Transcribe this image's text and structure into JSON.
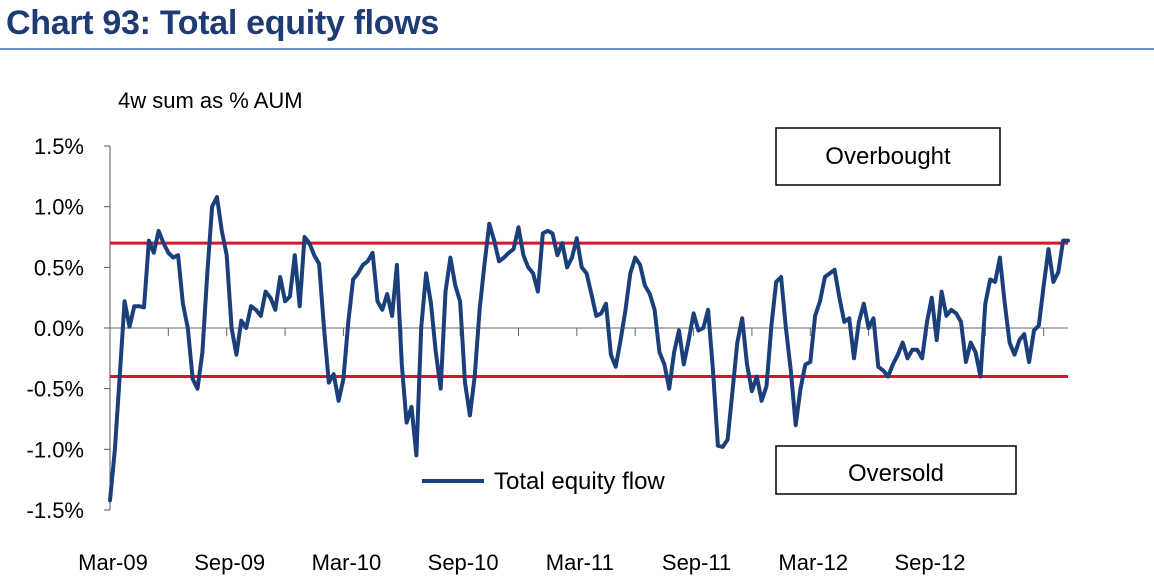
{
  "title": "Chart 93: Total equity flows",
  "chart_data": {
    "type": "line",
    "subtitle": "4w sum as % AUM",
    "ylim": [
      -1.5,
      1.5
    ],
    "yticks": [
      1.5,
      1.0,
      0.5,
      0.0,
      -0.5,
      -1.0,
      -1.5
    ],
    "ytick_labels": [
      "1.5%",
      "1.0%",
      "0.5%",
      "0.0%",
      "-0.5%",
      "-1.0%",
      "-1.5%"
    ],
    "x_tick_labels": [
      "Mar-09",
      "Sep-09",
      "Mar-10",
      "Sep-10",
      "Mar-11",
      "Sep-11",
      "Mar-12",
      "Sep-12"
    ],
    "x_tick_indices": [
      0,
      24,
      48,
      72,
      96,
      120,
      144,
      168
    ],
    "thresholds": {
      "overbought": 0.7,
      "oversold": -0.4,
      "color": "#d9142b"
    },
    "annotations": [
      "Overbought",
      "Oversold"
    ],
    "series": [
      {
        "name": "Total equity flow",
        "color": "#1a3f7a",
        "values": [
          -1.42,
          -1.0,
          -0.4,
          0.22,
          0.01,
          0.18,
          0.18,
          0.17,
          0.72,
          0.62,
          0.8,
          0.7,
          0.62,
          0.58,
          0.6,
          0.2,
          0.0,
          -0.42,
          -0.5,
          -0.2,
          0.45,
          1.0,
          1.08,
          0.8,
          0.6,
          0.0,
          -0.22,
          0.06,
          0.0,
          0.18,
          0.15,
          0.1,
          0.3,
          0.25,
          0.15,
          0.42,
          0.22,
          0.26,
          0.6,
          0.18,
          0.75,
          0.7,
          0.6,
          0.53,
          0.0,
          -0.45,
          -0.38,
          -0.6,
          -0.42,
          0.05,
          0.4,
          0.45,
          0.52,
          0.55,
          0.62,
          0.22,
          0.15,
          0.28,
          0.1,
          0.52,
          -0.3,
          -0.78,
          -0.65,
          -1.05,
          0.0,
          0.45,
          0.2,
          -0.2,
          -0.5,
          0.3,
          0.58,
          0.35,
          0.22,
          -0.45,
          -0.72,
          -0.4,
          0.15,
          0.52,
          0.86,
          0.72,
          0.55,
          0.58,
          0.62,
          0.65,
          0.83,
          0.6,
          0.5,
          0.45,
          0.3,
          0.78,
          0.8,
          0.78,
          0.6,
          0.7,
          0.5,
          0.58,
          0.74,
          0.5,
          0.45,
          0.28,
          0.1,
          0.12,
          0.2,
          -0.22,
          -0.32,
          -0.1,
          0.15,
          0.45,
          0.58,
          0.52,
          0.35,
          0.28,
          0.15,
          -0.2,
          -0.3,
          -0.5,
          -0.2,
          -0.02,
          -0.3,
          -0.1,
          0.12,
          -0.02,
          0.0,
          0.15,
          -0.35,
          -0.97,
          -0.98,
          -0.92,
          -0.52,
          -0.12,
          0.08,
          -0.3,
          -0.52,
          -0.4,
          -0.6,
          -0.48,
          0.02,
          0.38,
          0.42,
          0.0,
          -0.35,
          -0.8,
          -0.5,
          -0.3,
          -0.28,
          0.1,
          0.22,
          0.42,
          0.45,
          0.48,
          0.25,
          0.05,
          0.08,
          -0.25,
          0.05,
          0.2,
          0.0,
          0.08,
          -0.32,
          -0.35,
          -0.4,
          -0.3,
          -0.22,
          -0.12,
          -0.25,
          -0.18,
          -0.18,
          -0.25,
          0.05,
          0.25,
          -0.1,
          0.3,
          0.1,
          0.15,
          0.12,
          0.05,
          -0.28,
          -0.12,
          -0.2,
          -0.4,
          0.2,
          0.4,
          0.38,
          0.58,
          0.2,
          -0.12,
          -0.22,
          -0.1,
          -0.05,
          -0.28,
          -0.02,
          0.02,
          0.35,
          0.65,
          0.38,
          0.46,
          0.72,
          0.72
        ]
      }
    ]
  }
}
